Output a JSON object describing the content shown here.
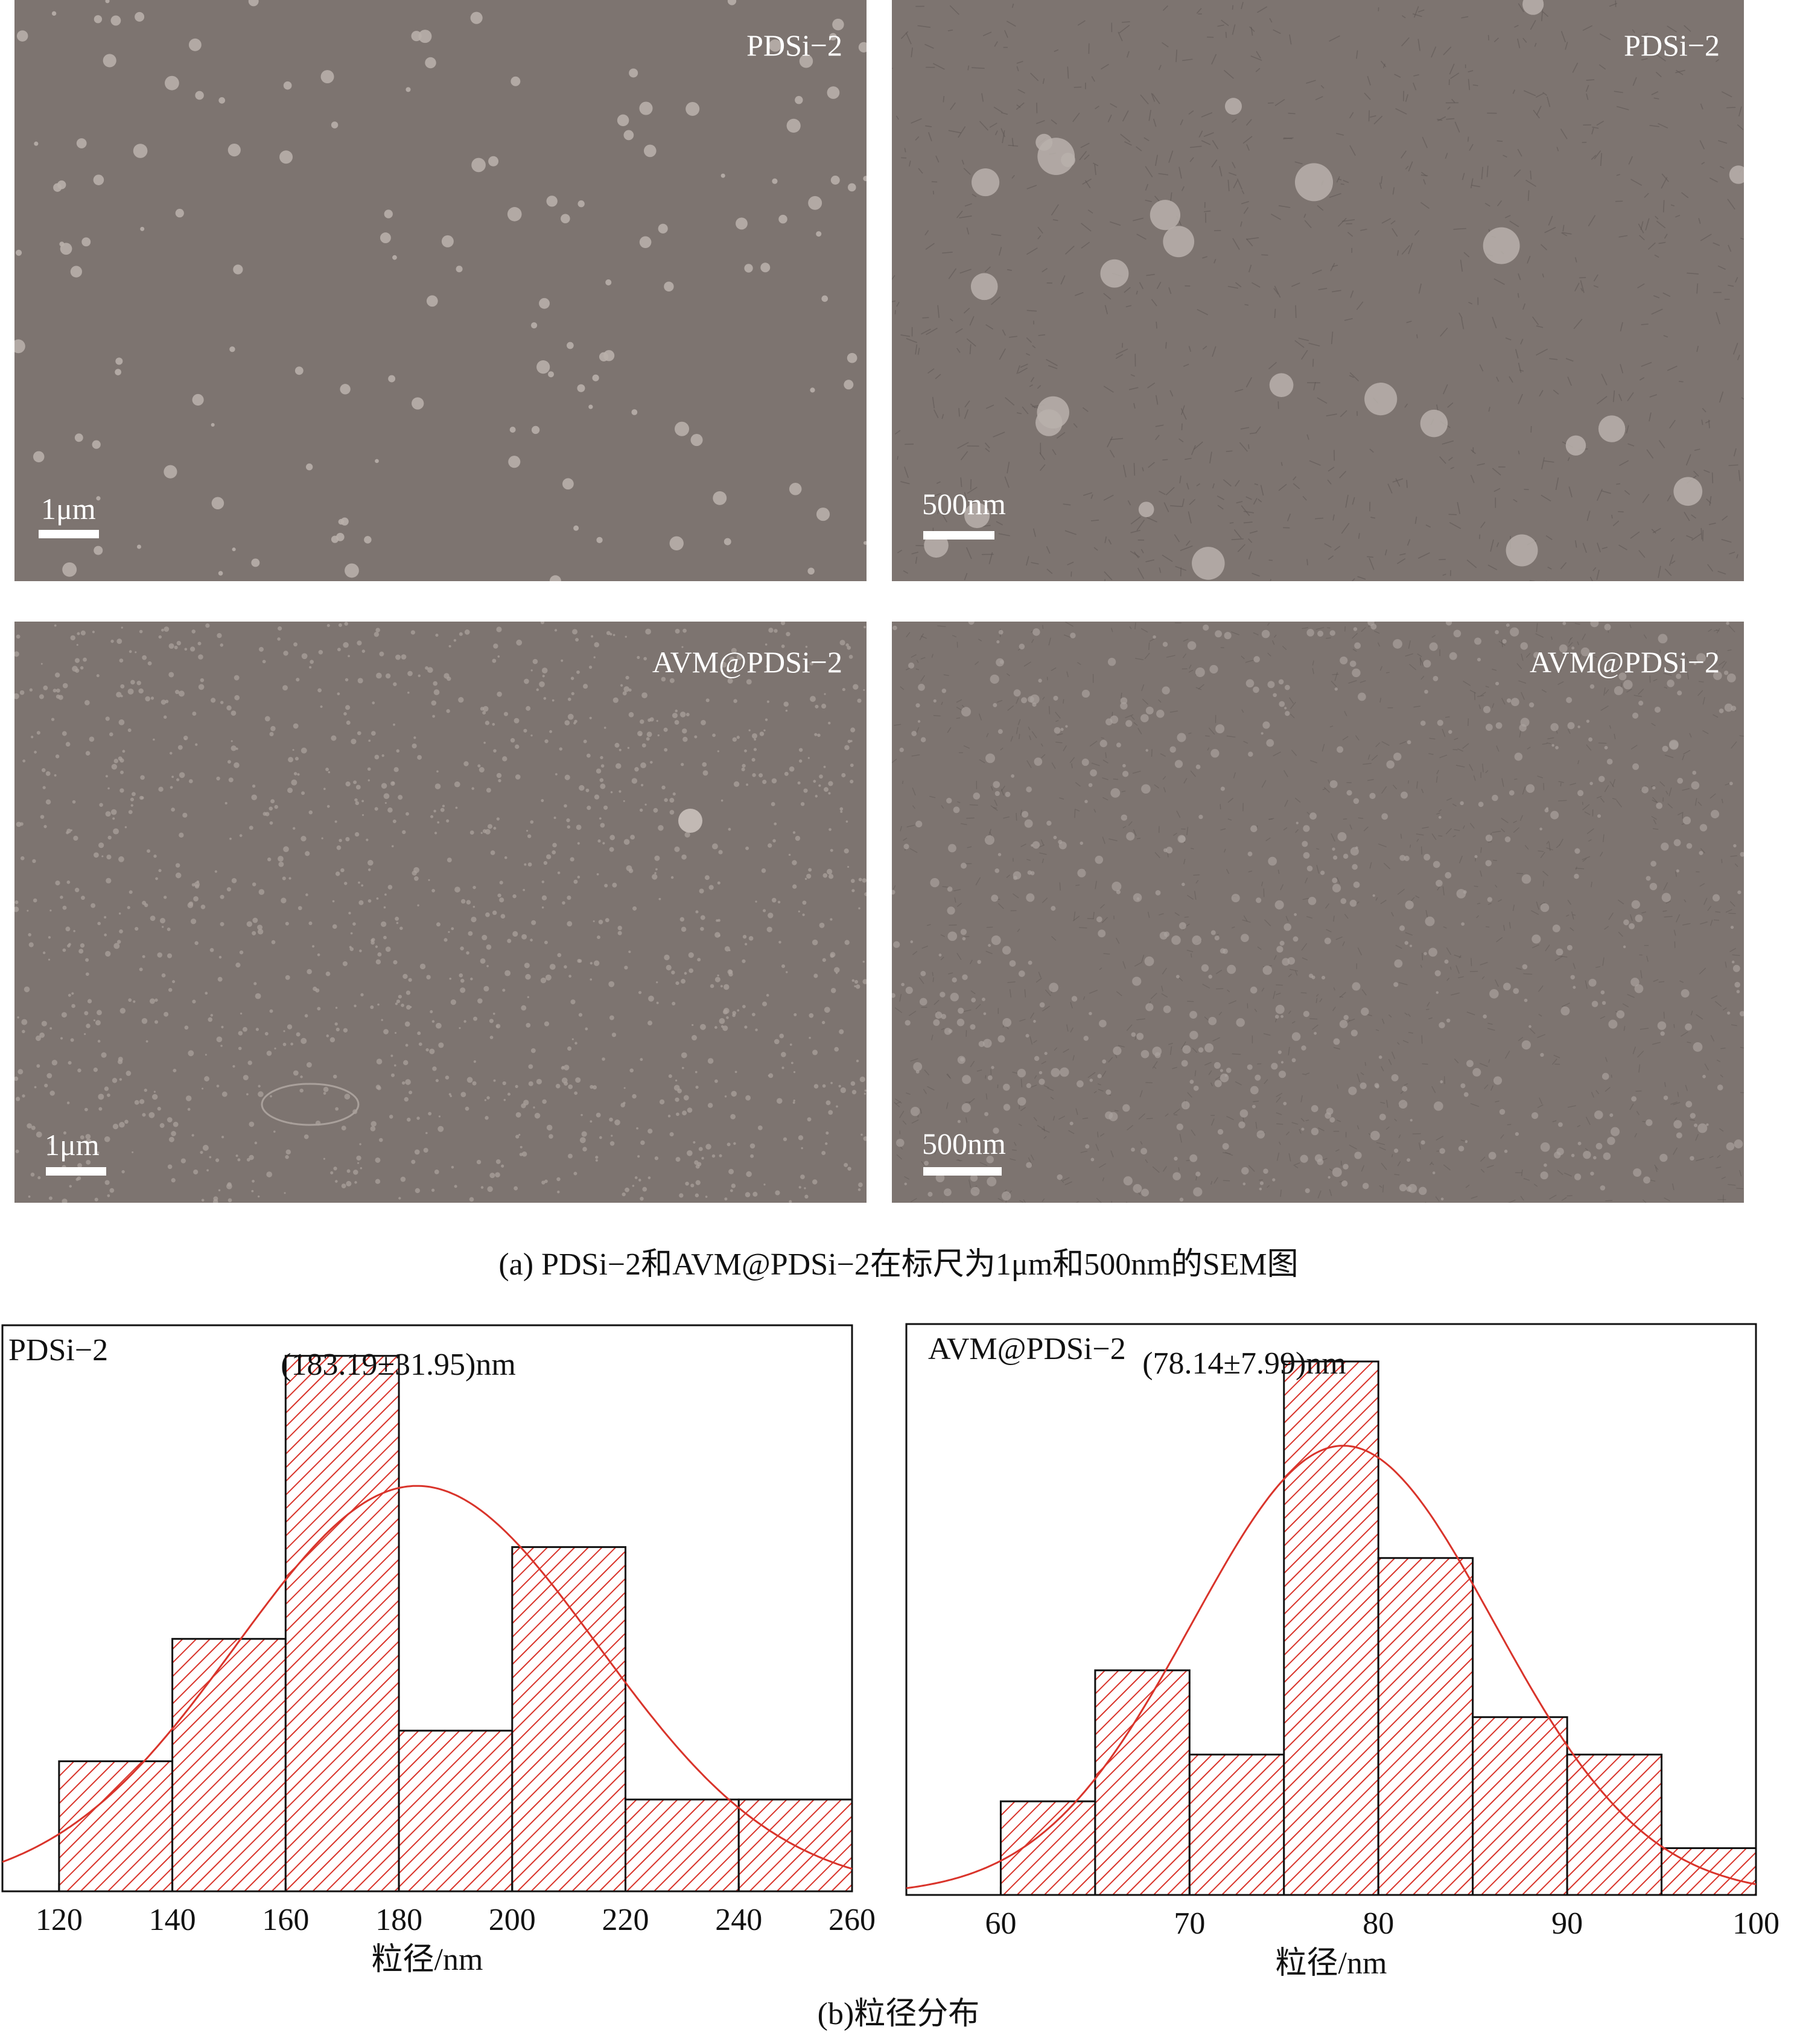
{
  "panel_a": {
    "images": [
      {
        "sample_label": "PDSi−2",
        "scale_label": "1μm"
      },
      {
        "sample_label": "PDSi−2",
        "scale_label": "500nm"
      },
      {
        "sample_label": "AVM@PDSi−2",
        "scale_label": "1μm"
      },
      {
        "sample_label": "AVM@PDSi−2",
        "scale_label": "500nm"
      }
    ],
    "caption": "(a) PDSi−2和AVM@PDSi−2在标尺为1μm和500nm的SEM图"
  },
  "panel_b": {
    "caption": "(b)粒径分布"
  },
  "colors": {
    "bar_hatch": "#d9342b",
    "fit_curve": "#d9342b",
    "sem_background": "#7d7470"
  },
  "chart_data": [
    {
      "type": "bar",
      "subtype": "histogram",
      "sample_label": "PDSi−2",
      "annotation": "(183.19±31.95)nm",
      "xlabel": "粒径/nm",
      "ylabel": "",
      "xlim": [
        110,
        260
      ],
      "xticks": [
        "120",
        "140",
        "160",
        "180",
        "200",
        "220",
        "240",
        "260"
      ],
      "bins": [
        [
          120,
          140
        ],
        [
          140,
          160
        ],
        [
          160,
          180
        ],
        [
          180,
          200
        ],
        [
          200,
          220
        ],
        [
          220,
          240
        ],
        [
          240,
          260
        ]
      ],
      "values": [
        1.7,
        3.3,
        7.0,
        2.1,
        4.5,
        1.2,
        1.2
      ],
      "ylim": [
        0,
        7.4
      ],
      "fit": {
        "type": "normal",
        "mean": 183.19,
        "sd": 31.95,
        "peak": 5.3
      }
    },
    {
      "type": "bar",
      "subtype": "histogram",
      "sample_label": "AVM@PDSi−2",
      "annotation": "(78.14±7.99)nm",
      "xlabel": "粒径/nm",
      "ylabel": "",
      "xlim": [
        55,
        100
      ],
      "xticks": [
        "60",
        "70",
        "80",
        "90",
        "100"
      ],
      "bins": [
        [
          60,
          65
        ],
        [
          65,
          70
        ],
        [
          70,
          75
        ],
        [
          75,
          80
        ],
        [
          80,
          85
        ],
        [
          85,
          90
        ],
        [
          90,
          95
        ],
        [
          95,
          100
        ]
      ],
      "values": [
        1.0,
        2.4,
        1.5,
        5.7,
        3.6,
        1.9,
        1.5,
        0.5
      ],
      "ylim": [
        0,
        6.1
      ],
      "fit": {
        "type": "normal",
        "mean": 78.14,
        "sd": 7.99,
        "peak": 4.8
      }
    }
  ]
}
